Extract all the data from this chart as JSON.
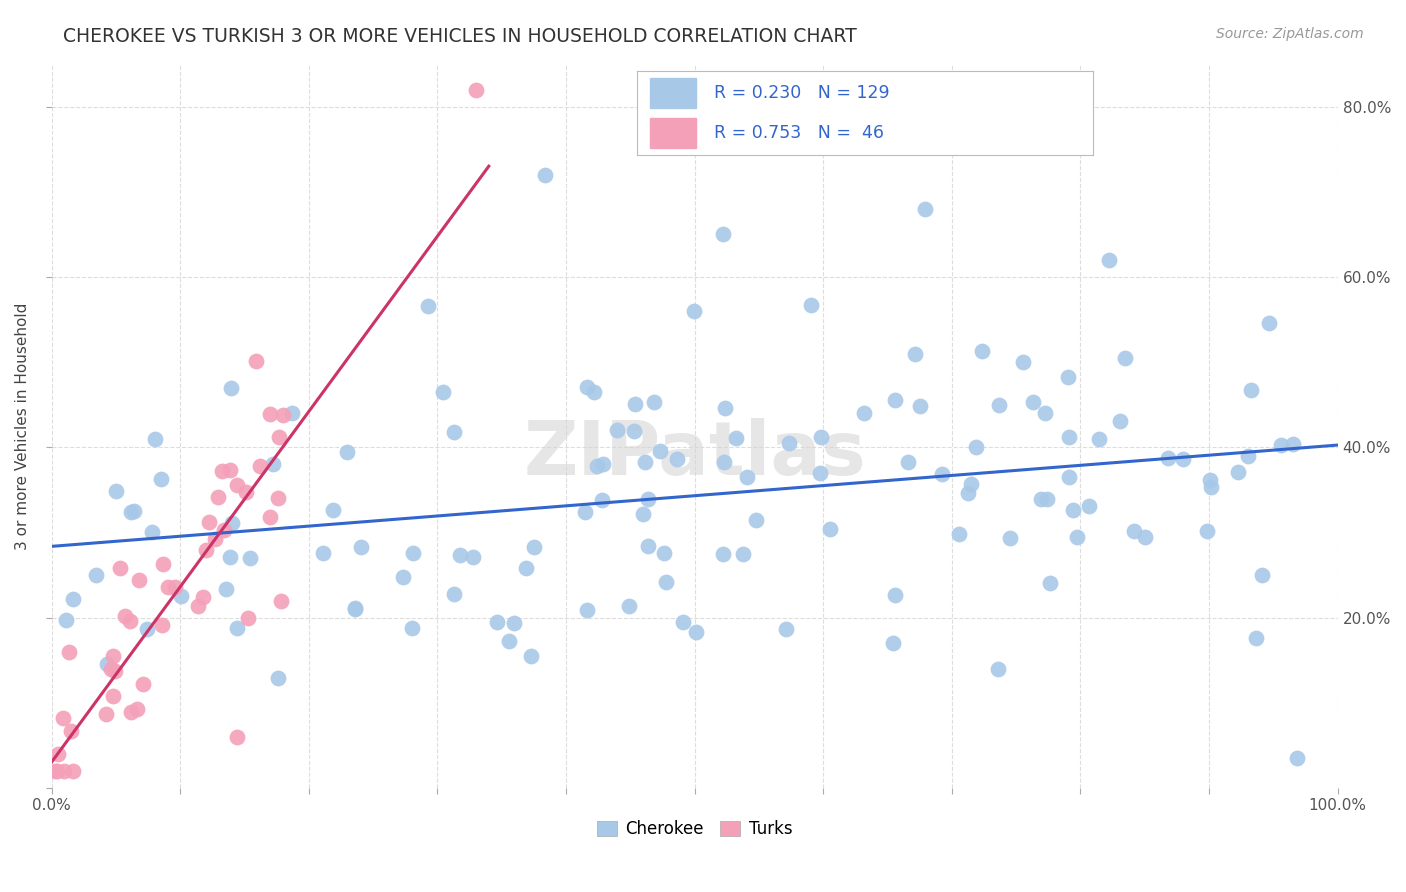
{
  "title": "CHEROKEE VS TURKISH 3 OR MORE VEHICLES IN HOUSEHOLD CORRELATION CHART",
  "source": "Source: ZipAtlas.com",
  "ylabel": "3 or more Vehicles in Household",
  "cherokee_R": 0.23,
  "cherokee_N": 129,
  "turks_R": 0.753,
  "turks_N": 46,
  "cherokee_color": "#a8c8e8",
  "turks_color": "#f4a0b8",
  "cherokee_line_color": "#3366cc",
  "turks_line_color": "#cc3366",
  "watermark": "ZIPatlas",
  "title_color": "#333333",
  "source_color": "#999999",
  "ylabel_color": "#444444",
  "tick_color": "#555555",
  "grid_color": "#dddddd",
  "legend_text_color": "#3366cc"
}
